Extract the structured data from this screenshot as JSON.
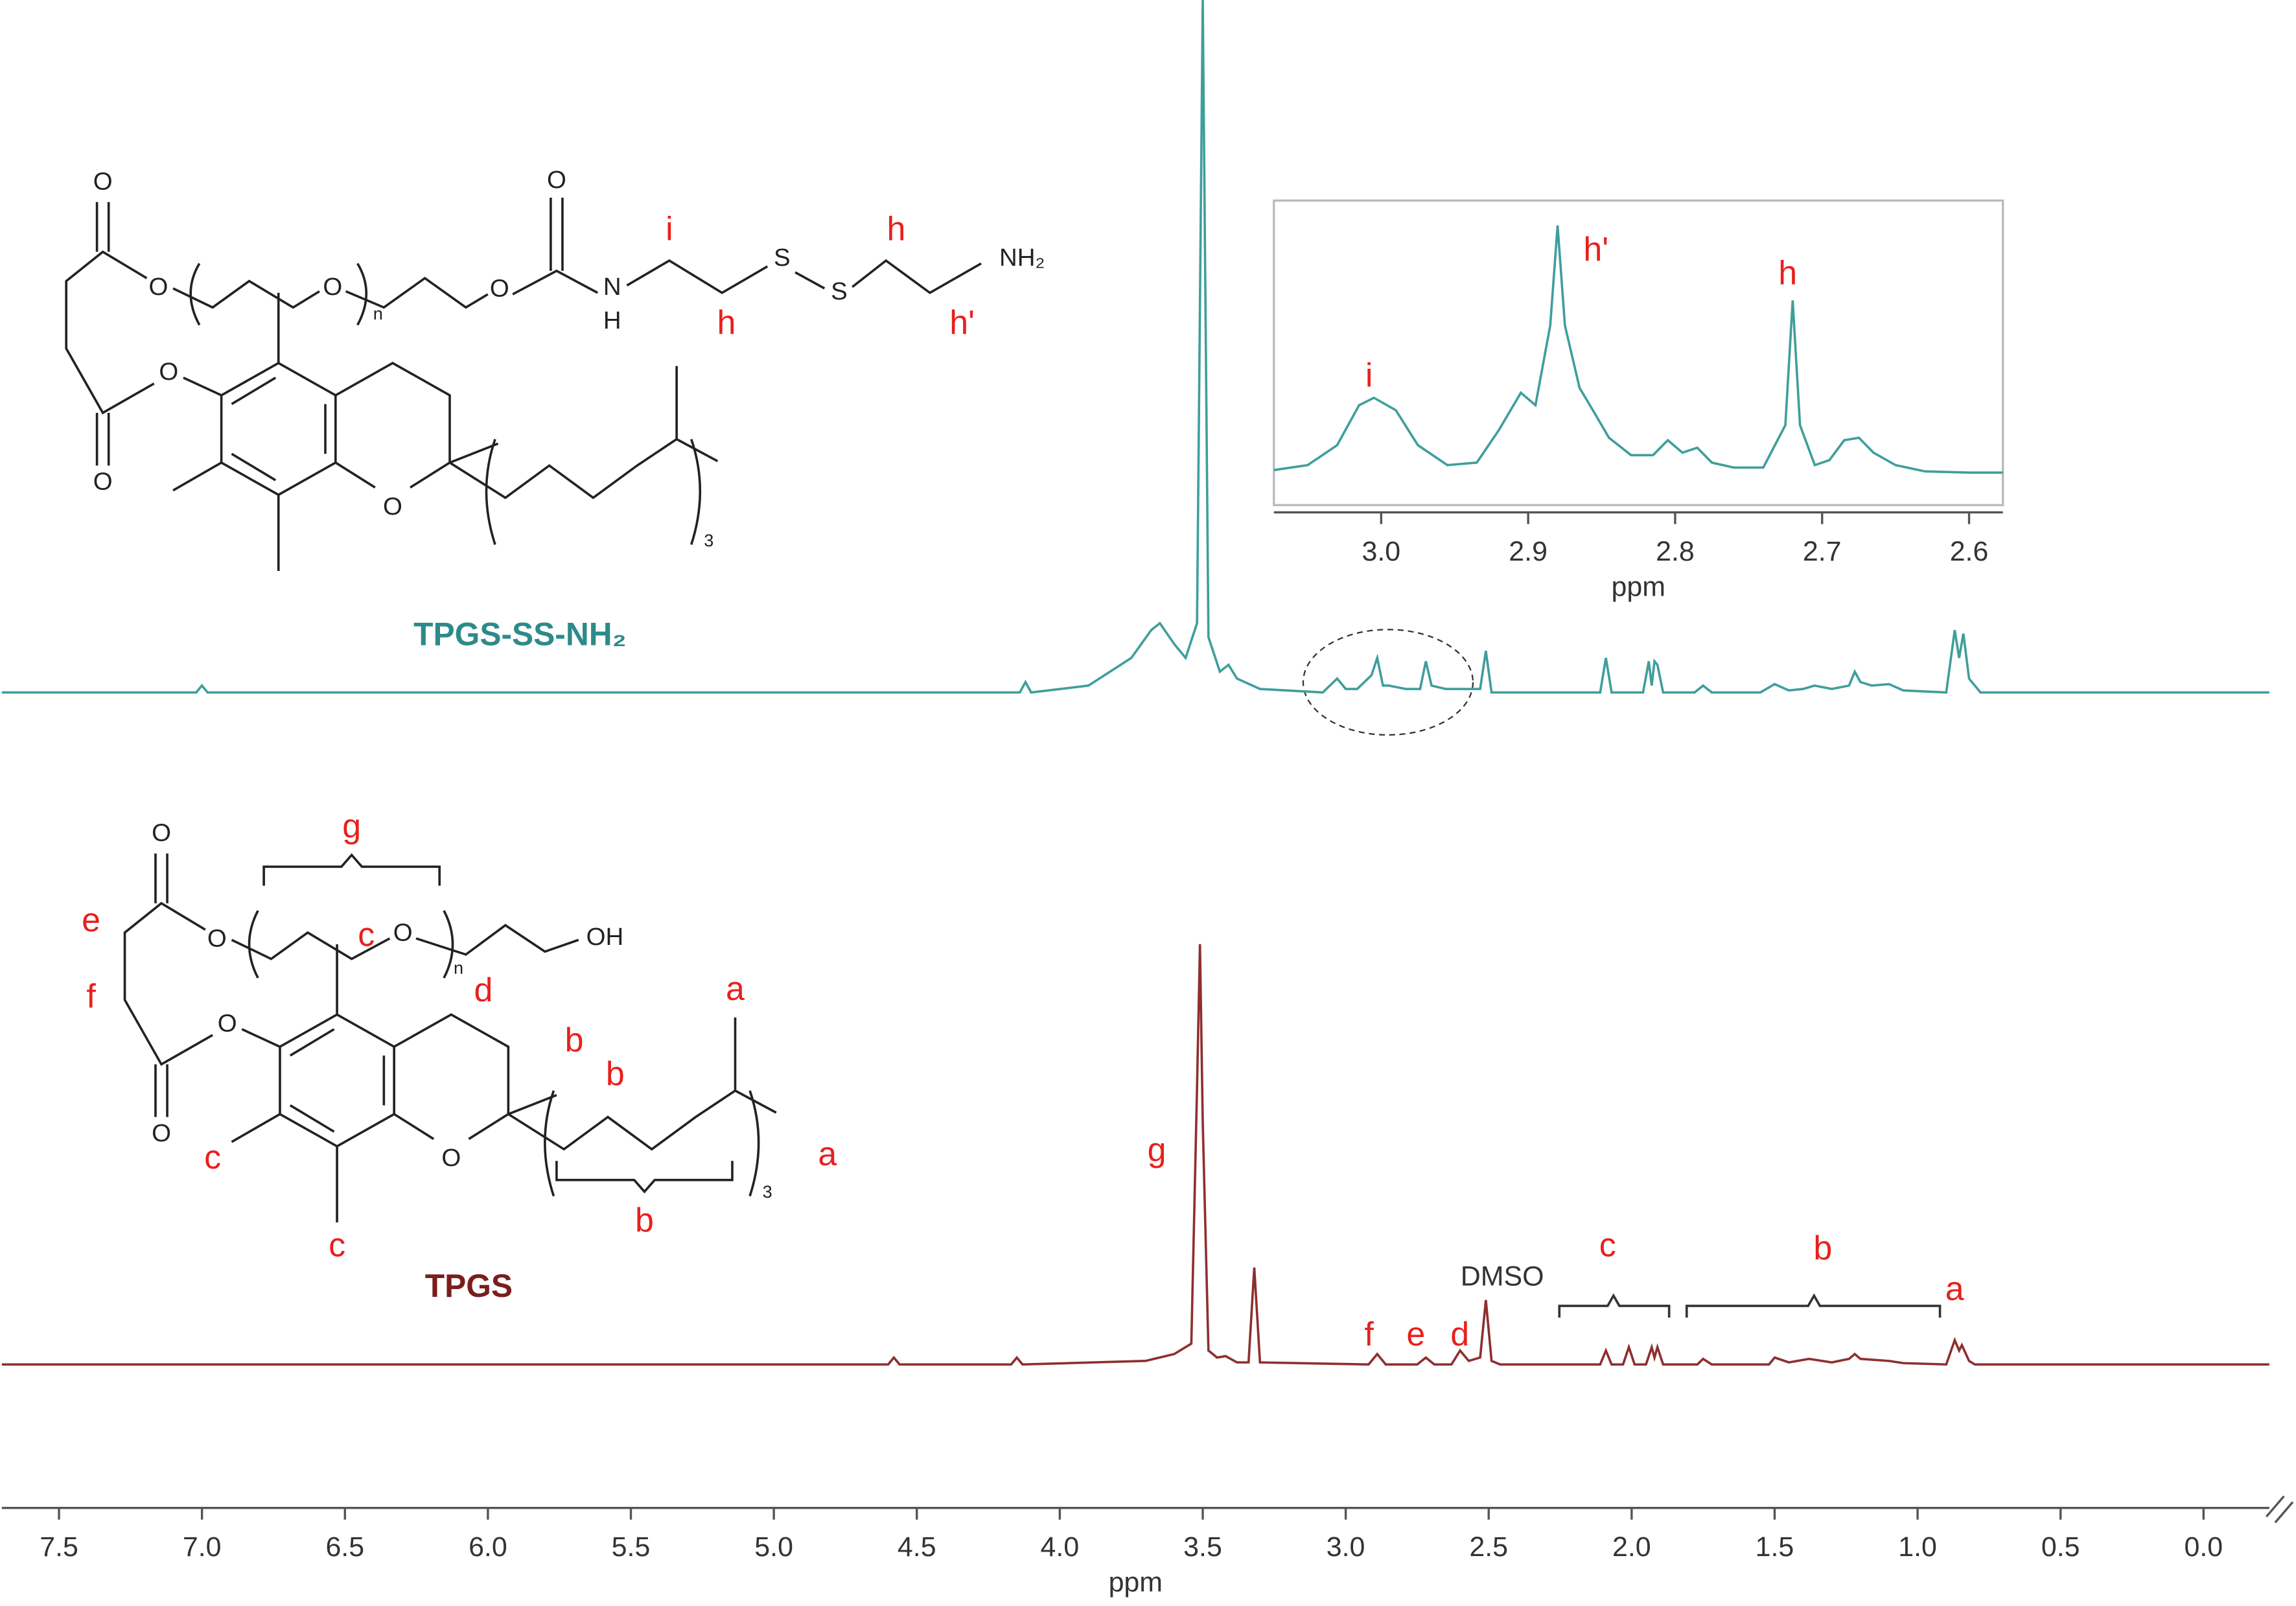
{
  "chart_data": [
    {
      "type": "line",
      "xlabel": "ppm",
      "xlim": [
        7.7,
        -0.23
      ],
      "ylim": [
        0,
        100
      ],
      "xticks": [
        7.5,
        {
          "value": 7,
          "label": "7.0"
        },
        6.5,
        {
          "value": 6,
          "label": "6.0"
        },
        5.5,
        {
          "value": 5,
          "label": "5.0"
        },
        4.5,
        {
          "value": 4,
          "label": "4.0"
        },
        3.5,
        {
          "value": 3,
          "label": "3.0"
        },
        2.5,
        {
          "value": 2,
          "label": "2.0"
        },
        1.5,
        {
          "value": 1,
          "label": "1.0"
        },
        0.5,
        {
          "value": 0,
          "label": "0.0"
        }
      ],
      "series": [
        {
          "name": "TPGS-SS-NH₂",
          "color": "#3f9e9c",
          "x": [
            7.7,
            7.02,
            7.0,
            6.98,
            4.14,
            4.12,
            4.1,
            3.9,
            3.75,
            3.68,
            3.65,
            3.6,
            3.56,
            3.52,
            3.5,
            3.48,
            3.44,
            3.41,
            3.38,
            3.3,
            3.08,
            3.03,
            3.0,
            2.96,
            2.91,
            2.89,
            2.87,
            2.85,
            2.79,
            2.74,
            2.72,
            2.7,
            2.65,
            2.53,
            2.51,
            2.49,
            2.11,
            2.09,
            2.07,
            1.96,
            1.94,
            1.93,
            1.92,
            1.91,
            1.89,
            1.78,
            1.75,
            1.72,
            1.55,
            1.5,
            1.45,
            1.4,
            1.36,
            1.3,
            1.24,
            1.22,
            1.2,
            1.16,
            1.1,
            1.05,
            0.9,
            0.87,
            0.855,
            0.84,
            0.82,
            0.78,
            -0.23
          ],
          "values": [
            0,
            0,
            1,
            0,
            0,
            1.5,
            0,
            1,
            5,
            9,
            10,
            7,
            5,
            10,
            100,
            8,
            3,
            4,
            2,
            0.5,
            0,
            2,
            0.5,
            0.5,
            2.5,
            5,
            1,
            1,
            0.5,
            0.5,
            4.5,
            1,
            0.5,
            0.5,
            6,
            0,
            0,
            5,
            0,
            0,
            4.5,
            1,
            4.5,
            4,
            0,
            0,
            1,
            0,
            0,
            1.2,
            0.3,
            0.5,
            1,
            0.5,
            1,
            3,
            1.5,
            1,
            1.2,
            0.3,
            0,
            9,
            5,
            8.5,
            2,
            0,
            0
          ]
        },
        {
          "name": "TPGS",
          "color": "#8e2f2f",
          "x": [
            7.7,
            4.6,
            4.58,
            4.56,
            4.17,
            4.15,
            4.13,
            3.7,
            3.6,
            3.54,
            3.52,
            3.51,
            3.5,
            3.48,
            3.45,
            3.42,
            3.38,
            3.34,
            3.32,
            3.3,
            2.92,
            2.89,
            2.86,
            2.75,
            2.72,
            2.69,
            2.63,
            2.6,
            2.57,
            2.53,
            2.51,
            2.49,
            2.46,
            2.11,
            2.09,
            2.07,
            2.03,
            2.01,
            1.99,
            1.95,
            1.93,
            1.92,
            1.91,
            1.89,
            1.77,
            1.75,
            1.72,
            1.52,
            1.5,
            1.45,
            1.38,
            1.3,
            1.24,
            1.22,
            1.2,
            1.1,
            1.05,
            0.9,
            0.87,
            0.855,
            0.845,
            0.82,
            0.8,
            -0.23
          ],
          "values": [
            0,
            0,
            1,
            0,
            0,
            1,
            0,
            0.5,
            1.5,
            3,
            40,
            60.7,
            35,
            2,
            1,
            1.2,
            0.3,
            0.3,
            14,
            0.3,
            0,
            1.5,
            0,
            0,
            1,
            0,
            0,
            2,
            0.5,
            1,
            9.3,
            0.5,
            0,
            0,
            2,
            0,
            0,
            2.5,
            0,
            0,
            2.5,
            1,
            2.5,
            0,
            0,
            0.8,
            0,
            0,
            1,
            0.3,
            0.8,
            0.3,
            0.8,
            1.5,
            0.8,
            0.5,
            0.2,
            0,
            3.5,
            2,
            2.8,
            0.5,
            0,
            0
          ]
        }
      ],
      "annotations": [
        "g",
        "f",
        "e",
        "d",
        "DMSO",
        "c",
        "b",
        "a"
      ]
    },
    {
      "type": "line",
      "xlabel": "ppm",
      "xlim": [
        3.073,
        2.577
      ],
      "ylim": [
        -12,
        110
      ],
      "color": "#3f9e9c",
      "xticks": [
        {
          "value": 3,
          "label": "3.0"
        },
        2.9,
        2.8,
        2.7,
        2.6
      ],
      "x": [
        3.073,
        3.05,
        3.03,
        3.015,
        3.005,
        2.99,
        2.975,
        2.955,
        2.935,
        2.92,
        2.905,
        2.895,
        2.885,
        2.88,
        2.875,
        2.865,
        2.855,
        2.845,
        2.83,
        2.815,
        2.805,
        2.795,
        2.785,
        2.775,
        2.76,
        2.74,
        2.725,
        2.72,
        2.715,
        2.705,
        2.695,
        2.685,
        2.675,
        2.665,
        2.65,
        2.63,
        2.6,
        2.577
      ],
      "values": [
        2,
        4,
        12,
        28,
        31,
        26,
        12,
        4,
        5,
        18,
        33,
        28,
        60,
        100,
        60,
        35,
        25,
        15,
        8,
        8,
        14,
        9,
        11,
        5,
        3,
        3,
        20,
        70,
        20,
        4,
        6,
        14,
        15,
        9,
        4,
        1.5,
        1,
        1
      ],
      "annotations": [
        "i",
        "h'",
        "h"
      ]
    }
  ],
  "structures": [
    {
      "atoms": [
        "O",
        "O",
        "O",
        "n",
        "O",
        "O",
        "N",
        "H",
        "S",
        "S",
        "NH₂",
        "O",
        "O",
        "O",
        "3"
      ],
      "labels": [
        "i",
        "h",
        "h",
        "h'"
      ]
    },
    {
      "atoms": [
        "O",
        "O",
        "O",
        "n",
        "OH",
        "O",
        "O",
        "O",
        "3"
      ],
      "labels": [
        "g",
        "e",
        "f",
        "c",
        "d",
        "b",
        "b",
        "a",
        "c",
        "c",
        "a",
        "b"
      ]
    }
  ]
}
